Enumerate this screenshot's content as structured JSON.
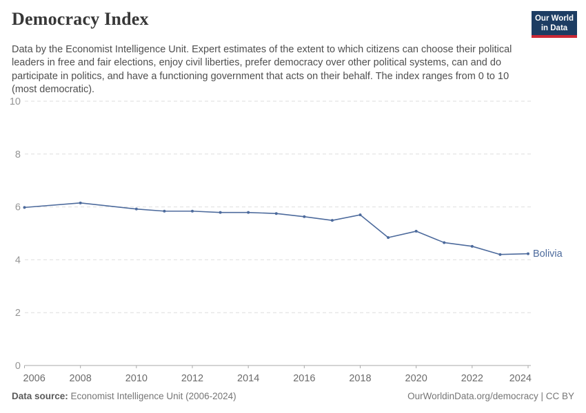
{
  "header": {
    "title": "Democracy Index",
    "subtitle": "Data by the Economist Intelligence Unit. Expert estimates of the extent to which citizens can choose their political leaders in free and fair elections, enjoy civil liberties, prefer democracy over other political systems, can and do participate in politics, and have a functioning government that acts on their behalf. The index ranges from 0 to 10 (most democratic).",
    "logo": {
      "line1": "Our World",
      "line2": "in Data",
      "bg_color": "#1d3d63",
      "accent_color": "#cc2936"
    }
  },
  "chart_data": {
    "type": "line",
    "title": "Democracy Index",
    "xlabel": "",
    "ylabel": "",
    "x": [
      2006,
      2008,
      2010,
      2011,
      2012,
      2013,
      2014,
      2015,
      2016,
      2017,
      2018,
      2019,
      2020,
      2021,
      2022,
      2023,
      2024
    ],
    "series": [
      {
        "name": "Bolivia",
        "color": "#4c6a9c",
        "values": [
          5.98,
          6.15,
          5.92,
          5.84,
          5.84,
          5.79,
          5.79,
          5.75,
          5.63,
          5.49,
          5.7,
          4.84,
          5.08,
          4.65,
          4.51,
          4.2,
          4.23
        ]
      }
    ],
    "ylim": [
      0,
      10
    ],
    "yticks": [
      0,
      2,
      4,
      6,
      8,
      10
    ],
    "xticks": [
      2006,
      2008,
      2010,
      2012,
      2014,
      2016,
      2018,
      2020,
      2022,
      2024
    ],
    "grid": "horizontal-dashed",
    "legend_position": "end-of-line-label",
    "axis_color": "#a8a8a8",
    "grid_color": "#dedede",
    "ytick_color": "#959595",
    "xtick_color": "#6b6b6b"
  },
  "footer": {
    "source_label": "Data source:",
    "source_value": "Economist Intelligence Unit (2006-2024)",
    "link": "OurWorldinData.org/democracy",
    "separator": " | ",
    "license": "CC BY"
  }
}
